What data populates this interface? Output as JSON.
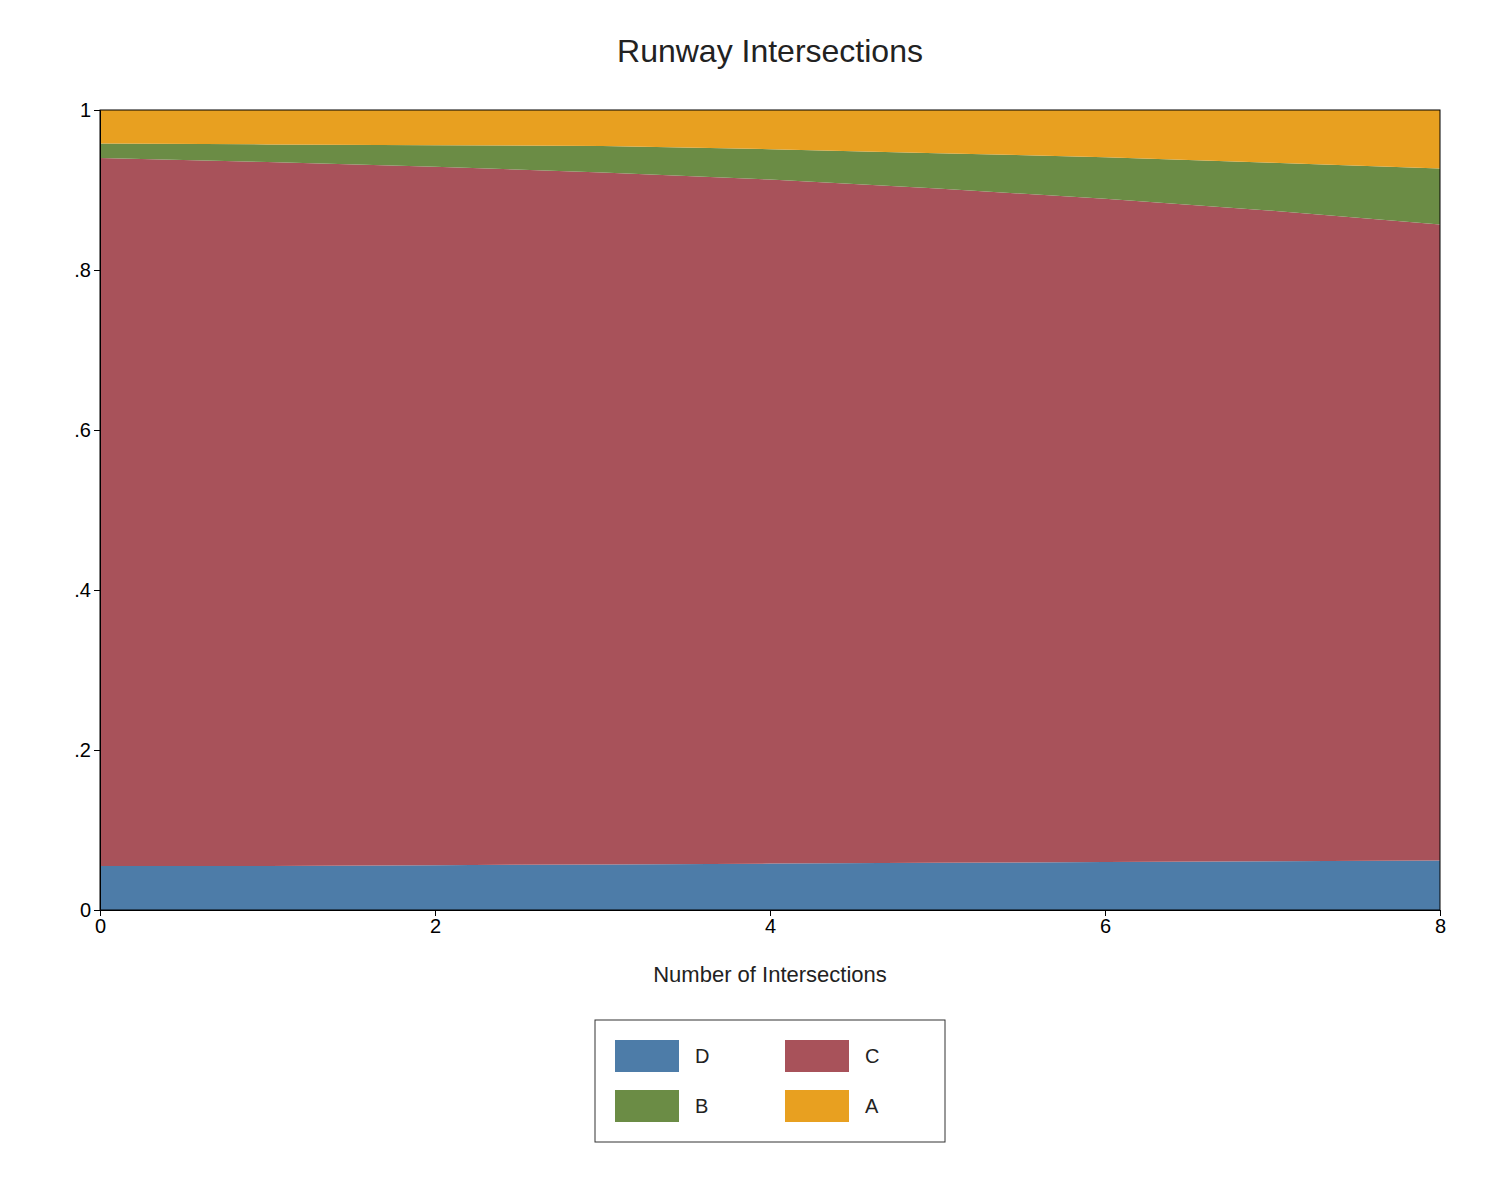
{
  "chart_data": {
    "type": "area",
    "stacked": true,
    "title": "Runway Intersections",
    "xlabel": "Number of Intersections",
    "x": [
      0,
      1,
      2,
      3,
      4,
      5,
      6,
      7,
      8
    ],
    "series": [
      {
        "name": "D",
        "color": "#4d7ca8",
        "values": [
          0.055,
          0.055,
          0.056,
          0.057,
          0.058,
          0.059,
          0.06,
          0.061,
          0.062
        ]
      },
      {
        "name": "C",
        "color": "#a8525a",
        "values": [
          0.885,
          0.88,
          0.873,
          0.865,
          0.855,
          0.843,
          0.829,
          0.813,
          0.795
        ]
      },
      {
        "name": "B",
        "color": "#6b8c45",
        "values": [
          0.018,
          0.022,
          0.027,
          0.033,
          0.038,
          0.044,
          0.052,
          0.06,
          0.07
        ]
      },
      {
        "name": "A",
        "color": "#e8a020",
        "values": [
          0.042,
          0.043,
          0.044,
          0.045,
          0.049,
          0.054,
          0.059,
          0.066,
          0.073
        ]
      }
    ],
    "xlim": [
      0,
      8
    ],
    "xticks": [
      0,
      2,
      4,
      6,
      8
    ],
    "ylim": [
      0,
      1
    ],
    "yticks": [
      0,
      {
        "value": 0.2,
        "label": ".2"
      },
      {
        "value": 0.4,
        "label": ".4"
      },
      {
        "value": 0.6,
        "label": ".6"
      },
      {
        "value": 0.8,
        "label": ".8"
      },
      1
    ],
    "grid": false,
    "legend": "bottom"
  }
}
